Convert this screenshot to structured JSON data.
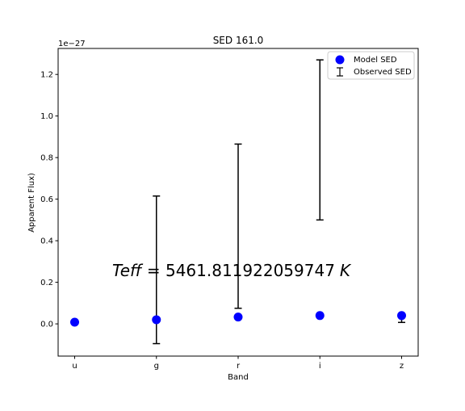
{
  "chart_data": {
    "type": "scatter",
    "title": "SED 161.0",
    "xlabel": "Band",
    "ylabel": "Apparent Flux)",
    "offset_label": "1e−27",
    "categories": [
      "u",
      "g",
      "r",
      "i",
      "z"
    ],
    "ylim": [
      -0.155,
      1.325
    ],
    "yticks": [
      "0.0",
      "0.2",
      "0.4",
      "0.6",
      "0.8",
      "1.0",
      "1.2"
    ],
    "ytick_values": [
      0.0,
      0.2,
      0.4,
      0.6,
      0.8,
      1.0,
      1.2
    ],
    "grid": false,
    "legend_position": "top-right",
    "series": [
      {
        "name": "Model SED",
        "kind": "points",
        "color": "#0000ff",
        "values": [
          0.008,
          0.02,
          0.033,
          0.04,
          0.04
        ]
      },
      {
        "name": "Observed SED",
        "kind": "errorbars",
        "color": "#000000",
        "centers": [
          null,
          0.26,
          0.47,
          0.885,
          0.02
        ],
        "errors": [
          null,
          0.355,
          0.395,
          0.385,
          0.013
        ]
      }
    ],
    "annotation": {
      "prefix": "Teff",
      "equals": " = ",
      "value": "5461.811922059747",
      "unit": "K"
    }
  }
}
